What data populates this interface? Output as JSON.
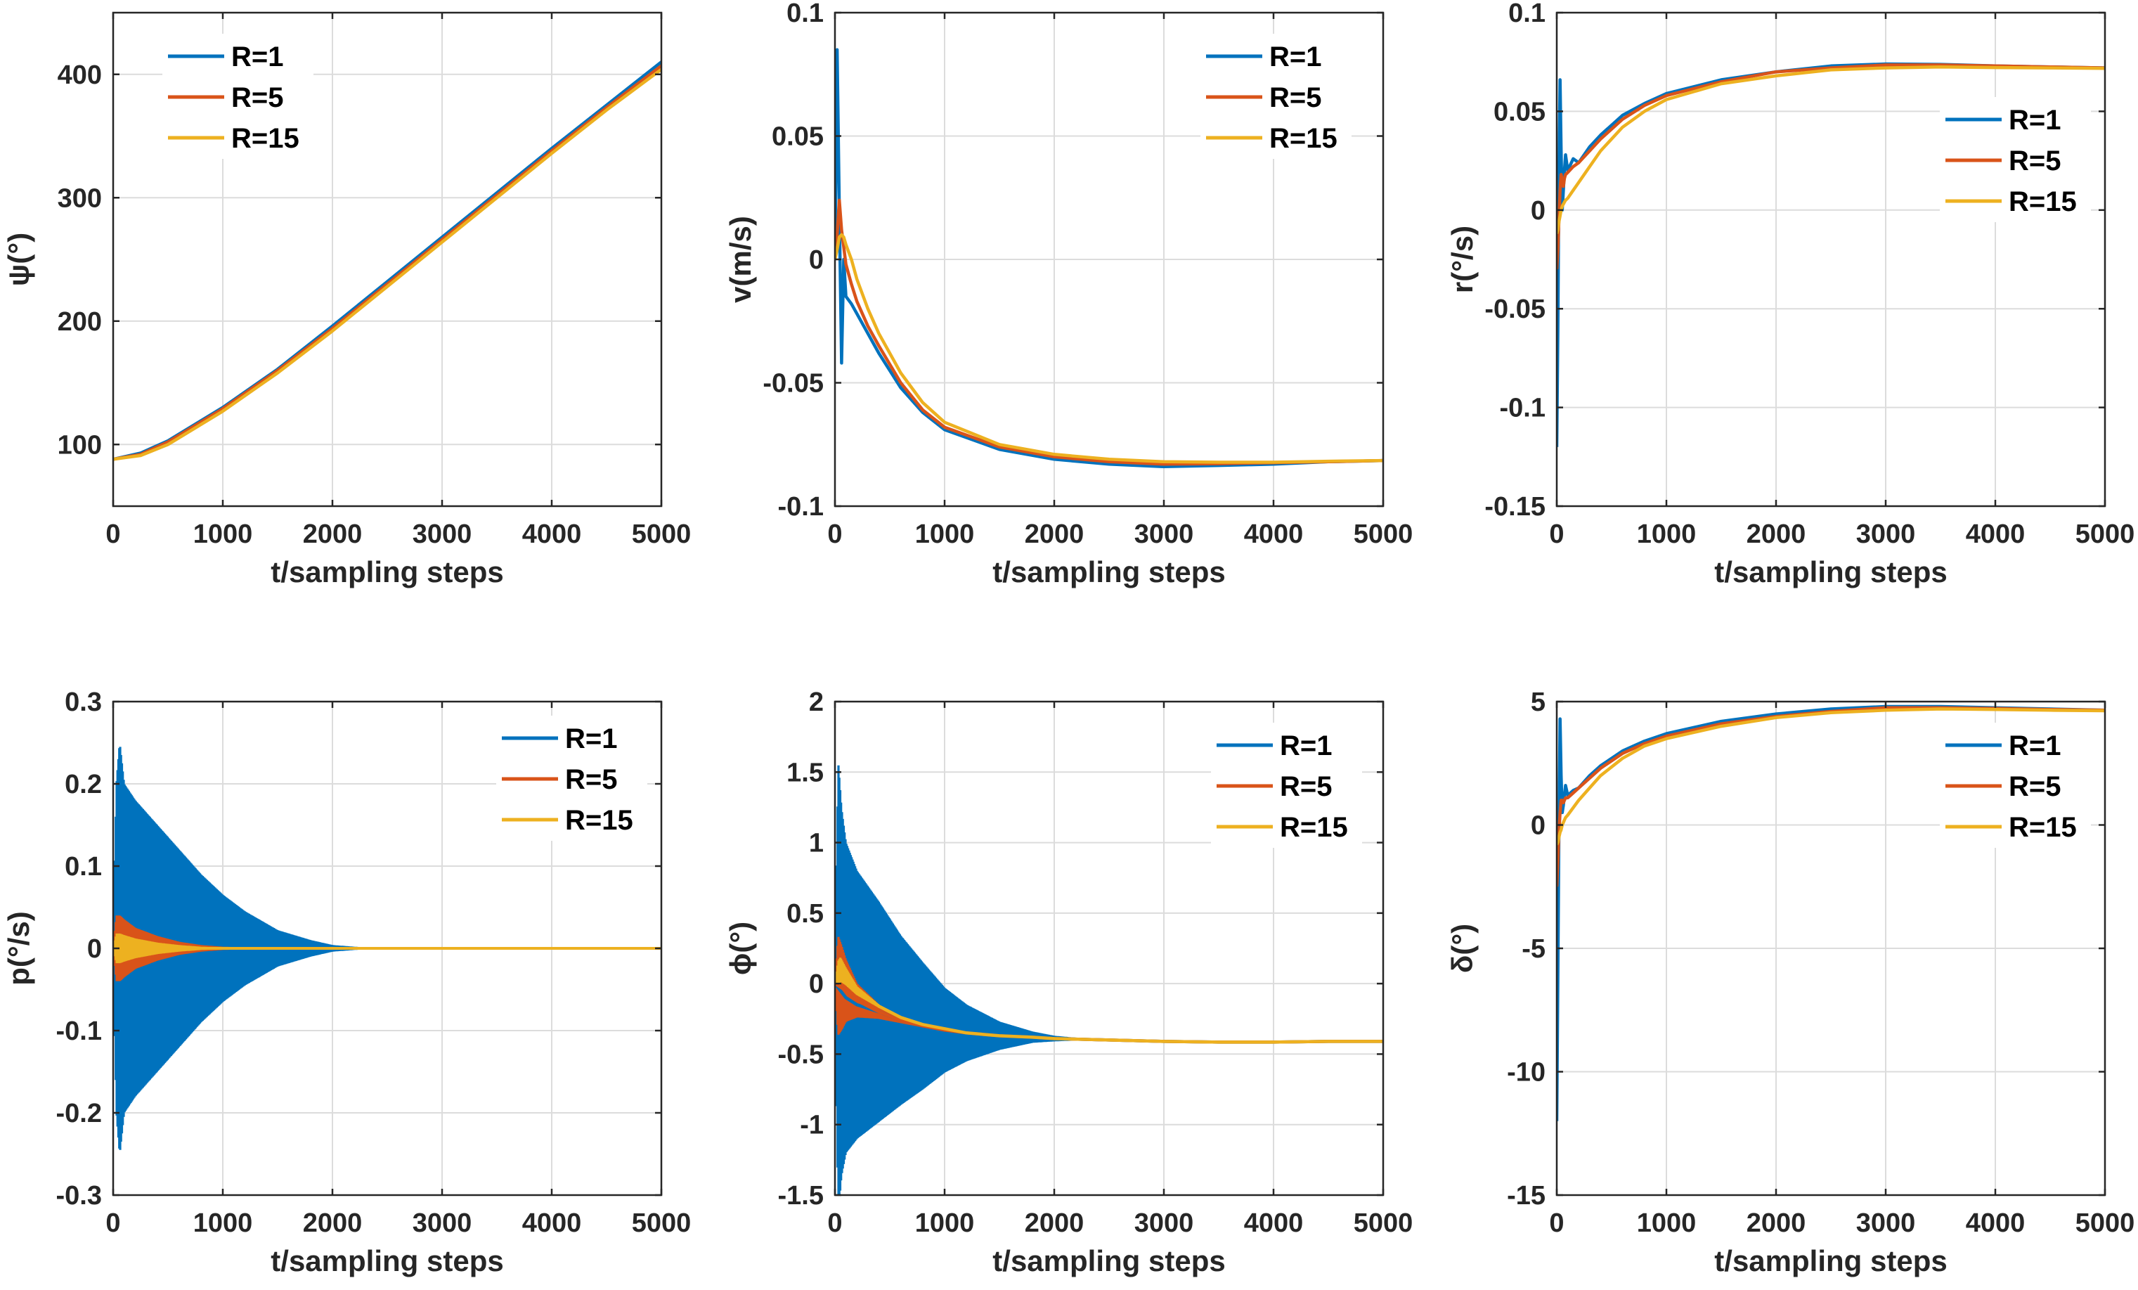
{
  "figure": {
    "layout": "2x3 subplot grid"
  },
  "colors": {
    "R=1": "#0072BD",
    "R=5": "#D95319",
    "R=15": "#EDB120",
    "grid": "#dcdcdc",
    "axis": "#262626"
  },
  "chart_data": [
    {
      "type": "line",
      "id": "psi",
      "ylabel": "ψ(°)",
      "xlabel": "t/sampling steps",
      "xlim": [
        0,
        5000
      ],
      "ylim": [
        50,
        450
      ],
      "xticks": [
        0,
        1000,
        2000,
        3000,
        4000,
        5000
      ],
      "yticks": [
        100,
        200,
        300,
        400
      ],
      "ytick_labels": [
        "100",
        "200",
        "300",
        "400"
      ],
      "legend": {
        "position": "top-left",
        "entries": [
          "R=1",
          "R=5",
          "R=15"
        ]
      },
      "series": [
        {
          "name": "R=1",
          "x": [
            0,
            250,
            500,
            1000,
            1500,
            2000,
            2500,
            3000,
            3500,
            4000,
            4500,
            5000
          ],
          "values": [
            88,
            93,
            103,
            130,
            161,
            196,
            232,
            268,
            304,
            340,
            375,
            410
          ]
        },
        {
          "name": "R=5",
          "x": [
            0,
            250,
            500,
            1000,
            1500,
            2000,
            2500,
            3000,
            3500,
            4000,
            4500,
            5000
          ],
          "values": [
            88,
            92,
            102,
            129,
            160,
            194,
            230,
            266,
            302,
            338,
            373,
            407
          ]
        },
        {
          "name": "R=15",
          "x": [
            0,
            250,
            500,
            1000,
            1500,
            2000,
            2500,
            3000,
            3500,
            4000,
            4500,
            5000
          ],
          "values": [
            88,
            91,
            100,
            127,
            158,
            192,
            228,
            264,
            300,
            336,
            371,
            404
          ]
        }
      ]
    },
    {
      "type": "line",
      "id": "v",
      "ylabel": "v(m/s)",
      "xlabel": "t/sampling steps",
      "xlim": [
        0,
        5000
      ],
      "ylim": [
        -0.1,
        0.1
      ],
      "xticks": [
        0,
        1000,
        2000,
        3000,
        4000,
        5000
      ],
      "yticks": [
        -0.1,
        -0.05,
        0,
        0.05,
        0.1
      ],
      "ytick_labels": [
        "-0.1",
        "-0.05",
        "0",
        "0.05",
        "0.1"
      ],
      "legend": {
        "position": "top-right",
        "entries": [
          "R=1",
          "R=5",
          "R=15"
        ]
      },
      "series": [
        {
          "name": "R=1",
          "x": [
            0,
            20,
            40,
            60,
            80,
            100,
            150,
            200,
            300,
            400,
            600,
            800,
            1000,
            1500,
            2000,
            2500,
            3000,
            3500,
            4000,
            4500,
            5000
          ],
          "values": [
            0.0,
            0.085,
            0.02,
            -0.042,
            0.0,
            -0.015,
            -0.018,
            -0.022,
            -0.03,
            -0.038,
            -0.052,
            -0.062,
            -0.069,
            -0.077,
            -0.081,
            -0.083,
            -0.084,
            -0.0835,
            -0.083,
            -0.082,
            -0.0815
          ]
        },
        {
          "name": "R=5",
          "x": [
            0,
            20,
            40,
            60,
            80,
            100,
            150,
            200,
            300,
            400,
            600,
            800,
            1000,
            1500,
            2000,
            2500,
            3000,
            3500,
            4000,
            4500,
            5000
          ],
          "values": [
            0.0,
            0.01,
            0.024,
            0.012,
            0.005,
            -0.002,
            -0.01,
            -0.017,
            -0.027,
            -0.035,
            -0.05,
            -0.061,
            -0.068,
            -0.076,
            -0.08,
            -0.082,
            -0.083,
            -0.0828,
            -0.0824,
            -0.082,
            -0.0815
          ]
        },
        {
          "name": "R=15",
          "x": [
            0,
            20,
            40,
            60,
            80,
            100,
            150,
            200,
            300,
            400,
            600,
            800,
            1000,
            1500,
            2000,
            2500,
            3000,
            3500,
            4000,
            4500,
            5000
          ],
          "values": [
            0.0,
            0.004,
            0.009,
            0.01,
            0.009,
            0.006,
            0.0,
            -0.008,
            -0.02,
            -0.03,
            -0.046,
            -0.058,
            -0.066,
            -0.075,
            -0.079,
            -0.081,
            -0.082,
            -0.0822,
            -0.0822,
            -0.0818,
            -0.0815
          ]
        }
      ]
    },
    {
      "type": "line",
      "id": "r",
      "ylabel": "r(°/s)",
      "xlabel": "t/sampling steps",
      "xlim": [
        0,
        5000
      ],
      "ylim": [
        -0.15,
        0.1
      ],
      "xticks": [
        0,
        1000,
        2000,
        3000,
        4000,
        5000
      ],
      "yticks": [
        -0.15,
        -0.1,
        -0.05,
        0,
        0.05,
        0.1
      ],
      "ytick_labels": [
        "-0.15",
        "-0.1",
        "-0.05",
        "0",
        "0.05",
        "0.1"
      ],
      "legend": {
        "position": "right",
        "entries": [
          "R=1",
          "R=5",
          "R=15"
        ]
      },
      "series": [
        {
          "name": "R=1",
          "x": [
            0,
            10,
            20,
            30,
            40,
            50,
            60,
            70,
            80,
            100,
            150,
            200,
            300,
            400,
            600,
            800,
            1000,
            1500,
            2000,
            2500,
            3000,
            3500,
            4000,
            4500,
            5000
          ],
          "values": [
            -0.12,
            -0.06,
            0.02,
            0.066,
            0.03,
            0.0,
            0.01,
            0.02,
            0.028,
            0.02,
            0.026,
            0.024,
            0.032,
            0.038,
            0.048,
            0.054,
            0.059,
            0.066,
            0.07,
            0.073,
            0.074,
            0.0738,
            0.073,
            0.0725,
            0.072
          ]
        },
        {
          "name": "R=5",
          "x": [
            0,
            10,
            20,
            30,
            40,
            50,
            60,
            70,
            80,
            100,
            150,
            200,
            300,
            400,
            600,
            800,
            1000,
            1500,
            2000,
            2500,
            3000,
            3500,
            4000,
            4500,
            5000
          ],
          "values": [
            -0.03,
            -0.02,
            -0.005,
            0.01,
            0.018,
            0.015,
            0.012,
            0.016,
            0.018,
            0.019,
            0.022,
            0.024,
            0.03,
            0.036,
            0.046,
            0.053,
            0.058,
            0.065,
            0.07,
            0.072,
            0.0735,
            0.0735,
            0.073,
            0.0725,
            0.072
          ]
        },
        {
          "name": "R=15",
          "x": [
            0,
            10,
            20,
            30,
            40,
            50,
            60,
            70,
            80,
            100,
            150,
            200,
            300,
            400,
            600,
            800,
            1000,
            1500,
            2000,
            2500,
            3000,
            3500,
            4000,
            4500,
            5000
          ],
          "values": [
            -0.012,
            -0.01,
            -0.006,
            -0.003,
            0.0,
            0.002,
            0.003,
            0.004,
            0.005,
            0.006,
            0.01,
            0.014,
            0.022,
            0.03,
            0.042,
            0.05,
            0.056,
            0.064,
            0.068,
            0.071,
            0.072,
            0.0725,
            0.0722,
            0.072,
            0.0718
          ]
        }
      ]
    },
    {
      "type": "line",
      "id": "p",
      "ylabel": "p(°/s)",
      "xlabel": "t/sampling steps",
      "xlim": [
        0,
        5000
      ],
      "ylim": [
        -0.3,
        0.3
      ],
      "xticks": [
        0,
        1000,
        2000,
        3000,
        4000,
        5000
      ],
      "yticks": [
        -0.3,
        -0.2,
        -0.1,
        0,
        0.1,
        0.2,
        0.3
      ],
      "ytick_labels": [
        "-0.3",
        "-0.2",
        "-0.1",
        "0",
        "0.1",
        "0.2",
        "0.3"
      ],
      "legend": {
        "position": "top-right",
        "entries": [
          "R=1",
          "R=5",
          "R=15"
        ]
      },
      "oscillation_envelope": [
        {
          "name": "R=1",
          "x": [
            0,
            30,
            60,
            100,
            200,
            400,
            600,
            800,
            1000,
            1200,
            1500,
            1800,
            2000,
            2300,
            5000
          ],
          "values": [
            0.0,
            0.2,
            0.25,
            0.2,
            0.18,
            0.15,
            0.12,
            0.09,
            0.065,
            0.045,
            0.022,
            0.01,
            0.004,
            0.001,
            0.0
          ]
        },
        {
          "name": "R=5",
          "x": [
            0,
            30,
            60,
            100,
            200,
            400,
            600,
            800,
            1000,
            1500,
            5000
          ],
          "values": [
            0.0,
            0.04,
            0.04,
            0.035,
            0.025,
            0.015,
            0.008,
            0.004,
            0.002,
            0.0,
            0.0
          ]
        },
        {
          "name": "R=15",
          "x": [
            0,
            30,
            60,
            100,
            200,
            400,
            600,
            800,
            1000,
            5000
          ],
          "values": [
            0.0,
            0.018,
            0.018,
            0.016,
            0.012,
            0.007,
            0.004,
            0.002,
            0.001,
            0.0
          ]
        }
      ]
    },
    {
      "type": "line",
      "id": "phi",
      "ylabel": "ϕ(°)",
      "xlabel": "t/sampling steps",
      "xlim": [
        0,
        5000
      ],
      "ylim": [
        -1.5,
        2
      ],
      "xticks": [
        0,
        1000,
        2000,
        3000,
        4000,
        5000
      ],
      "yticks": [
        -1.5,
        -1,
        -0.5,
        0,
        0.5,
        1,
        1.5,
        2
      ],
      "ytick_labels": [
        "-1.5",
        "-1",
        "-0.5",
        "0",
        "0.5",
        "1",
        "1.5",
        "2"
      ],
      "legend": {
        "position": "top-right",
        "entries": [
          "R=1",
          "R=5",
          "R=15"
        ]
      },
      "series": [
        {
          "name": "R=1",
          "x": [
            0,
            100,
            200,
            400,
            600,
            800,
            1000,
            1200,
            1500,
            1800,
            2000,
            2500,
            3000,
            3500,
            4000,
            4500,
            5000
          ],
          "values": [
            0.0,
            -0.1,
            -0.15,
            -0.2,
            -0.26,
            -0.3,
            -0.33,
            -0.35,
            -0.37,
            -0.38,
            -0.39,
            -0.4,
            -0.41,
            -0.415,
            -0.415,
            -0.41,
            -0.41
          ]
        },
        {
          "name": "R=5",
          "x": [
            0,
            100,
            200,
            400,
            600,
            800,
            1000,
            1200,
            1500,
            1800,
            2000,
            2500,
            3000,
            3500,
            4000,
            4500,
            5000
          ],
          "values": [
            0.0,
            -0.05,
            -0.12,
            -0.2,
            -0.26,
            -0.3,
            -0.33,
            -0.35,
            -0.37,
            -0.38,
            -0.39,
            -0.4,
            -0.41,
            -0.415,
            -0.415,
            -0.41,
            -0.41
          ]
        },
        {
          "name": "R=15",
          "x": [
            0,
            50,
            100,
            200,
            400,
            600,
            800,
            1000,
            1200,
            1500,
            1800,
            2000,
            2500,
            3000,
            3500,
            4000,
            4500,
            5000
          ],
          "values": [
            0.0,
            0.1,
            0.05,
            -0.05,
            -0.16,
            -0.24,
            -0.29,
            -0.32,
            -0.35,
            -0.37,
            -0.38,
            -0.39,
            -0.4,
            -0.41,
            -0.415,
            -0.415,
            -0.41,
            -0.41
          ]
        }
      ],
      "oscillation_envelope": [
        {
          "name": "R=1",
          "x": [
            0,
            30,
            60,
            100,
            200,
            400,
            600,
            800,
            1000,
            1200,
            1500,
            1800,
            2000,
            2300,
            5000
          ],
          "values": [
            0.0,
            1.6,
            1.3,
            1.1,
            0.95,
            0.78,
            0.6,
            0.45,
            0.3,
            0.2,
            0.1,
            0.04,
            0.02,
            0.005,
            0.0
          ]
        },
        {
          "name": "R=5",
          "x": [
            0,
            30,
            60,
            100,
            200,
            400,
            600,
            800,
            1000,
            1500,
            5000
          ],
          "values": [
            0.0,
            0.35,
            0.3,
            0.22,
            0.12,
            0.05,
            0.02,
            0.01,
            0.005,
            0.0,
            0.0
          ]
        },
        {
          "name": "R=15",
          "x": [
            0,
            30,
            60,
            100,
            200,
            400,
            600,
            5000
          ],
          "values": [
            0.0,
            0.1,
            0.08,
            0.06,
            0.03,
            0.01,
            0.0,
            0.0
          ]
        }
      ]
    },
    {
      "type": "line",
      "id": "delta",
      "ylabel": "δ(°)",
      "xlabel": "t/sampling steps",
      "xlim": [
        0,
        5000
      ],
      "ylim": [
        -15,
        5
      ],
      "xticks": [
        0,
        1000,
        2000,
        3000,
        4000,
        5000
      ],
      "yticks": [
        -15,
        -10,
        -5,
        0,
        5
      ],
      "ytick_labels": [
        "-15",
        "-10",
        "-5",
        "0",
        "5"
      ],
      "legend": {
        "position": "top-right",
        "entries": [
          "R=1",
          "R=5",
          "R=15"
        ]
      },
      "series": [
        {
          "name": "R=1",
          "x": [
            0,
            10,
            20,
            30,
            40,
            50,
            60,
            70,
            80,
            100,
            150,
            200,
            300,
            400,
            600,
            800,
            1000,
            1500,
            2000,
            2500,
            3000,
            3500,
            4000,
            4500,
            5000
          ],
          "values": [
            -12,
            -6,
            0,
            4.3,
            2,
            0.5,
            0.8,
            1.2,
            1.6,
            1.2,
            1.4,
            1.5,
            2.0,
            2.4,
            3.0,
            3.4,
            3.7,
            4.2,
            4.5,
            4.7,
            4.8,
            4.8,
            4.75,
            4.7,
            4.65
          ]
        },
        {
          "name": "R=5",
          "x": [
            0,
            10,
            20,
            30,
            40,
            50,
            60,
            70,
            80,
            100,
            150,
            200,
            300,
            400,
            600,
            800,
            1000,
            1500,
            2000,
            2500,
            3000,
            3500,
            4000,
            4500,
            5000
          ],
          "values": [
            -2.5,
            -1.5,
            -0.3,
            0.5,
            1.0,
            1.0,
            0.9,
            1.0,
            1.1,
            1.1,
            1.3,
            1.5,
            1.9,
            2.3,
            2.9,
            3.3,
            3.6,
            4.1,
            4.4,
            4.6,
            4.75,
            4.75,
            4.72,
            4.68,
            4.65
          ]
        },
        {
          "name": "R=15",
          "x": [
            0,
            10,
            20,
            30,
            40,
            50,
            60,
            70,
            80,
            100,
            150,
            200,
            300,
            400,
            600,
            800,
            1000,
            1500,
            2000,
            2500,
            3000,
            3500,
            4000,
            4500,
            5000
          ],
          "values": [
            -0.8,
            -0.7,
            -0.5,
            -0.3,
            -0.2,
            0.0,
            0.1,
            0.2,
            0.3,
            0.4,
            0.7,
            1.0,
            1.5,
            2.0,
            2.7,
            3.2,
            3.5,
            4.0,
            4.35,
            4.55,
            4.65,
            4.7,
            4.68,
            4.65,
            4.63
          ]
        }
      ]
    }
  ]
}
